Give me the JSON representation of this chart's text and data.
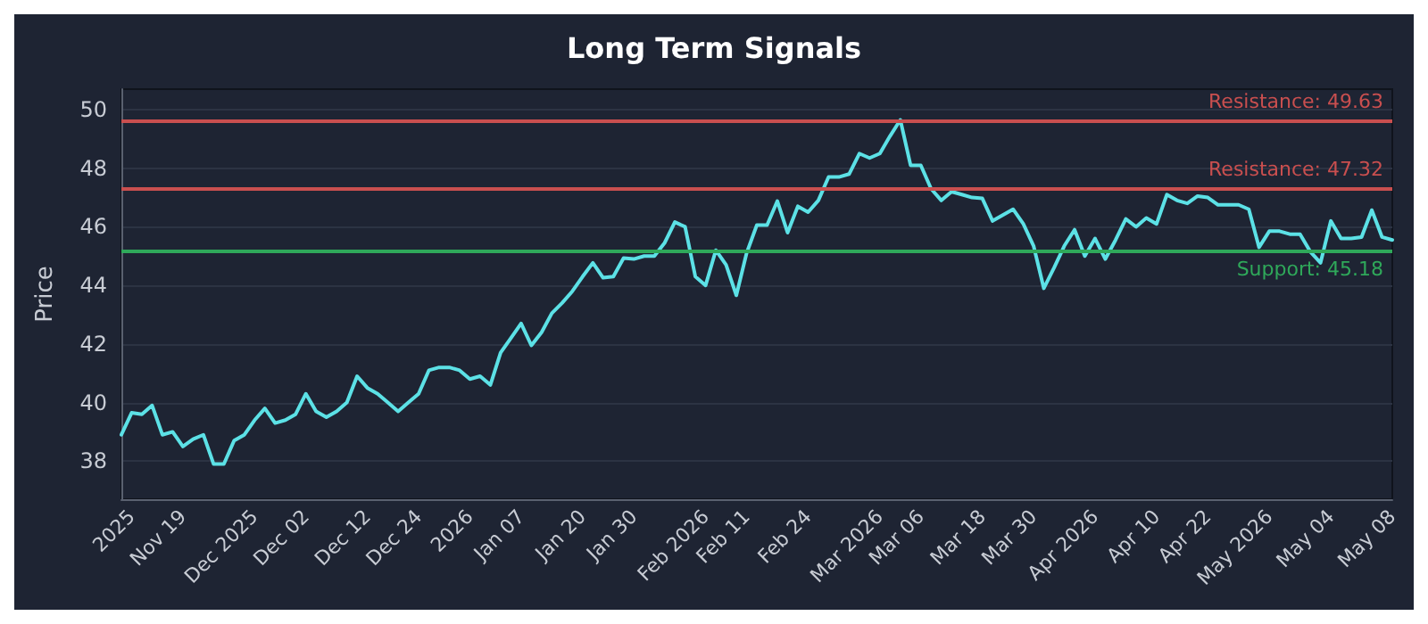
{
  "chart_data": {
    "type": "line",
    "title": "Long Term Signals",
    "ylabel": "Price",
    "categories": [
      null,
      "2025",
      null,
      null,
      null,
      null,
      "Nov 19",
      null,
      null,
      null,
      null,
      null,
      null,
      "Dec 2025",
      null,
      null,
      null,
      null,
      "Dec 02",
      null,
      null,
      null,
      null,
      null,
      "Dec 12",
      null,
      null,
      null,
      null,
      "Dec 24",
      null,
      null,
      null,
      null,
      "2026",
      null,
      null,
      null,
      null,
      "Jan 07",
      null,
      null,
      null,
      null,
      null,
      "Jan 20",
      null,
      null,
      null,
      null,
      "Jan 30",
      null,
      null,
      null,
      null,
      null,
      null,
      "Feb 2026",
      null,
      null,
      null,
      "Feb 11",
      null,
      null,
      null,
      null,
      null,
      "Feb 24",
      null,
      null,
      null,
      null,
      null,
      null,
      "Mar 2026",
      null,
      null,
      null,
      "Mar 06",
      null,
      null,
      null,
      null,
      null,
      "Mar 18",
      null,
      null,
      null,
      null,
      "Mar 30",
      null,
      null,
      null,
      null,
      null,
      "Apr 2026",
      null,
      null,
      null,
      null,
      null,
      "Apr 10",
      null,
      null,
      null,
      null,
      "Apr 22",
      null,
      null,
      null,
      null,
      null,
      "May 2026",
      null,
      null,
      null,
      null,
      null,
      "May 04",
      null,
      null,
      null,
      null,
      null,
      "May 08"
    ],
    "series": [
      {
        "color": "#5ce1e6",
        "values": [
          38.9,
          39.65,
          39.6,
          39.9,
          38.9,
          39.0,
          38.5,
          38.75,
          38.9,
          37.9,
          37.9,
          38.7,
          38.9,
          39.4,
          39.8,
          39.3,
          39.4,
          39.6,
          40.3,
          39.7,
          39.5,
          39.7,
          40.0,
          40.9,
          40.5,
          40.3,
          40.0,
          39.7,
          40.0,
          40.3,
          41.1,
          41.2,
          41.2,
          41.1,
          40.8,
          40.9,
          40.6,
          41.7,
          42.2,
          42.7,
          41.95,
          42.4,
          43.05,
          43.4,
          43.8,
          44.3,
          44.77,
          44.26,
          44.3,
          44.93,
          44.9,
          45.0,
          45.0,
          45.45,
          46.16,
          46.0,
          44.3,
          44.0,
          45.2,
          44.7,
          43.66,
          45.1,
          46.06,
          46.06,
          46.88,
          45.8,
          46.7,
          46.5,
          46.9,
          47.7,
          47.7,
          47.8,
          48.5,
          48.35,
          48.5,
          49.1,
          49.65,
          48.1,
          48.1,
          47.3,
          46.9,
          47.2,
          47.1,
          47.0,
          46.97,
          46.2,
          46.4,
          46.6,
          46.1,
          45.35,
          43.9,
          44.6,
          45.35,
          45.9,
          45.0,
          45.6,
          44.9,
          45.55,
          46.27,
          46.0,
          46.3,
          46.1,
          47.1,
          46.9,
          46.8,
          47.05,
          47.0,
          46.75,
          46.75,
          46.75,
          46.6,
          45.3,
          45.85,
          45.85,
          45.75,
          45.75,
          45.15,
          44.77,
          46.2,
          45.6,
          45.6,
          45.65,
          46.57,
          45.65,
          45.55
        ]
      }
    ],
    "ylim": [
      36.7,
      50.7
    ],
    "yticks": [
      38,
      40,
      42,
      44,
      46,
      48,
      50
    ],
    "grid": "y",
    "marker": "none",
    "line_style": "solid",
    "ref_lines": [
      {
        "axis": "y",
        "value": 49.63,
        "label": "Resistance: 49.63",
        "color": "#c94f4f"
      },
      {
        "axis": "y",
        "value": 47.32,
        "label": "Resistance: 47.32",
        "color": "#c94f4f"
      },
      {
        "axis": "y",
        "value": 45.18,
        "label": "Support: 45.18",
        "color": "#2fa85a"
      }
    ]
  }
}
